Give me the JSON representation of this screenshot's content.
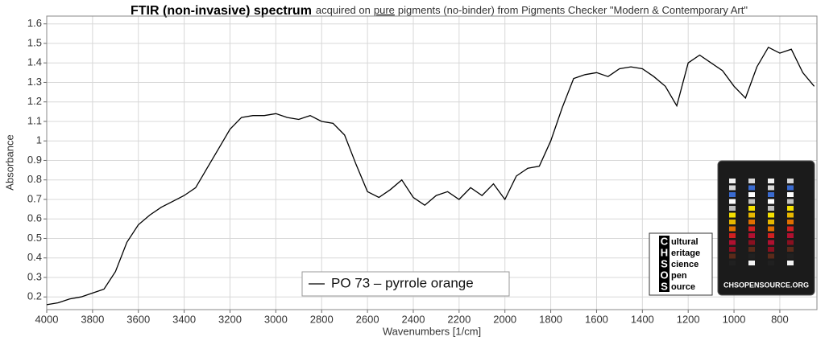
{
  "chart_data": {
    "type": "line",
    "title": "FTIR (non-invasive) spectrum",
    "subtitle": [
      "acquired on",
      "pure",
      "pigments (no-binder) from Pigments Checker \"Modern & Contemporary Art\""
    ],
    "x_label": "Wavenumbers [1/cm]",
    "y_label": "Absorbance",
    "x": [
      4000,
      3950,
      3900,
      3850,
      3800,
      3750,
      3700,
      3650,
      3600,
      3550,
      3500,
      3450,
      3400,
      3350,
      3300,
      3250,
      3200,
      3150,
      3100,
      3050,
      3000,
      2950,
      2900,
      2850,
      2800,
      2750,
      2700,
      2650,
      2600,
      2550,
      2500,
      2450,
      2400,
      2350,
      2300,
      2250,
      2200,
      2150,
      2100,
      2050,
      2000,
      1950,
      1900,
      1850,
      1800,
      1750,
      1700,
      1650,
      1600,
      1550,
      1500,
      1450,
      1400,
      1350,
      1300,
      1250,
      1200,
      1150,
      1100,
      1050,
      1000,
      950,
      900,
      850,
      800,
      750,
      700,
      650
    ],
    "series": [
      {
        "name": "PO 73 – pyrrole orange",
        "color": "#000000",
        "values": [
          0.16,
          0.17,
          0.19,
          0.2,
          0.22,
          0.24,
          0.33,
          0.48,
          0.57,
          0.62,
          0.66,
          0.69,
          0.72,
          0.76,
          0.86,
          0.96,
          1.06,
          1.12,
          1.13,
          1.13,
          1.14,
          1.12,
          1.11,
          1.13,
          1.1,
          1.09,
          1.03,
          0.88,
          0.74,
          0.71,
          0.75,
          0.8,
          0.71,
          0.67,
          0.72,
          0.74,
          0.7,
          0.76,
          0.72,
          0.78,
          0.7,
          0.82,
          0.86,
          0.87,
          1.0,
          1.17,
          1.32,
          1.34,
          1.35,
          1.33,
          1.37,
          1.38,
          1.37,
          1.33,
          1.28,
          1.18,
          1.4,
          1.44,
          1.4,
          1.36,
          1.28,
          1.22,
          1.38,
          1.48,
          1.45,
          1.47,
          1.35,
          1.28
        ]
      }
    ],
    "xlim": [
      4000,
      638
    ],
    "xticks": [
      4000,
      3800,
      3600,
      3400,
      3200,
      3000,
      2800,
      2600,
      2400,
      2200,
      2000,
      1800,
      1600,
      1400,
      1200,
      1000,
      800
    ],
    "ylim": [
      0.135,
      1.64
    ],
    "yticks": [
      0.2,
      0.3,
      0.4,
      0.5,
      0.6,
      0.7,
      0.8,
      0.9,
      1,
      1.1,
      1.2,
      1.3,
      1.4,
      1.5,
      1.6
    ],
    "grid": true,
    "legend": "bottom-center"
  },
  "logo": {
    "initials": [
      "C",
      "H",
      "S",
      "O",
      "S"
    ],
    "words": [
      "ultural",
      "eritage",
      "cience",
      "pen",
      "ource"
    ]
  },
  "photo": {
    "caption": "CHSOPENSOURCE.ORG"
  }
}
